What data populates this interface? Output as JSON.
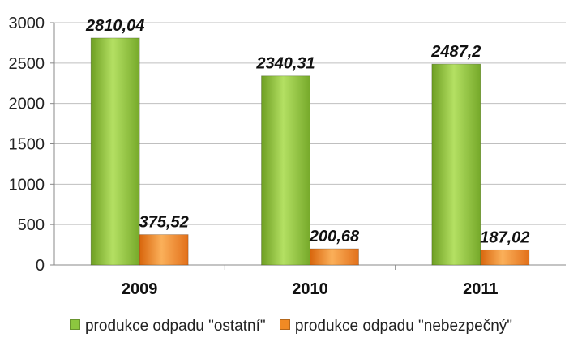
{
  "chart_data": {
    "type": "bar",
    "categories": [
      "2009",
      "2010",
      "2011"
    ],
    "series": [
      {
        "name": "produkce odpadu \"ostatní\"",
        "values": [
          2810.04,
          2340.31,
          2487.2
        ],
        "labels": [
          "2810,04",
          "2340,31",
          "2487,2"
        ],
        "color": "#8cc63f"
      },
      {
        "name": "produkce odpadu \"nebezpečný\"",
        "values": [
          375.52,
          200.68,
          187.02
        ],
        "labels": [
          "375,52",
          "200,68",
          "187,02"
        ],
        "color": "#f08a24"
      }
    ],
    "ylim": [
      0,
      3000
    ],
    "yticks": [
      0,
      500,
      1000,
      1500,
      2000,
      2500,
      3000
    ],
    "grid": true,
    "legend": "bottom"
  }
}
